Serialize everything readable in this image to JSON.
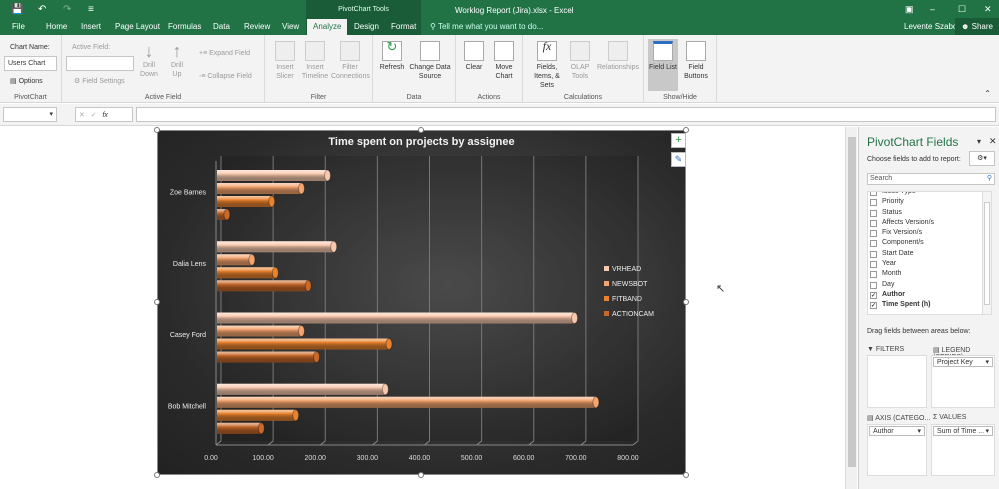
{
  "window": {
    "title": "Worklog Report (Jira).xlsx - Excel",
    "context_tab_group": "PivotChart Tools",
    "user": "Levente Szabo",
    "share": "Share"
  },
  "tabs": [
    "File",
    "Home",
    "Insert",
    "Page Layout",
    "Formulas",
    "Data",
    "Review",
    "View",
    "Analyze",
    "Design",
    "Format"
  ],
  "active_tab": "Analyze",
  "tell_me": "Tell me what you want to do...",
  "ribbon": {
    "pivotchart": {
      "chart_name_label": "Chart Name:",
      "chart_name_value": "Users Chart",
      "options": "Options",
      "group": "PivotChart"
    },
    "active_field": {
      "label": "Active Field:",
      "value": "",
      "field_settings": "Field Settings",
      "drill_down": "Drill Down",
      "drill_up": "Drill Up",
      "expand": "Expand Field",
      "collapse": "Collapse Field",
      "group": "Active Field"
    },
    "filter": {
      "insert_slicer": "Insert Slicer",
      "insert_timeline": "Insert Timeline",
      "filter_connections": "Filter Connections",
      "group": "Filter"
    },
    "data": {
      "refresh": "Refresh",
      "change_source": "Change Data Source",
      "group": "Data"
    },
    "actions": {
      "clear": "Clear",
      "move_chart": "Move Chart",
      "group": "Actions"
    },
    "calculations": {
      "fields_items": "Fields, Items, & Sets",
      "olap": "OLAP Tools",
      "relationships": "Relationships",
      "group": "Calculations"
    },
    "show_hide": {
      "field_list": "Field List",
      "field_buttons": "Field Buttons",
      "group": "Show/Hide"
    }
  },
  "formula_bar": {
    "name_box": "",
    "formula": "",
    "fx": "fx"
  },
  "chart_data": {
    "type": "bar",
    "title": "Time spent on projects by assignee",
    "categories": [
      "Zoe Barnes",
      "Dalia Lens",
      "Casey Ford",
      "Bob Mitchell"
    ],
    "series": [
      {
        "name": "VRHEAD",
        "color": "#f9c9ae",
        "values": [
          212,
          224,
          686,
          323
        ]
      },
      {
        "name": "NEWSBOT",
        "color": "#f4a46e",
        "values": [
          162,
          67,
          162,
          727
        ]
      },
      {
        "name": "FITBAND",
        "color": "#e9822e",
        "values": [
          105,
          112,
          330,
          151
        ]
      },
      {
        "name": "ACTIONCAM",
        "color": "#c8692a",
        "values": [
          19,
          175,
          191,
          85
        ]
      }
    ],
    "xlim": [
      0,
      800
    ],
    "ticks": [
      "0.00",
      "100.00",
      "200.00",
      "300.00",
      "400.00",
      "500.00",
      "600.00",
      "700.00",
      "800.00"
    ],
    "grid": true,
    "legend": "right",
    "style": "3d-cylinder"
  },
  "panel": {
    "title": "PivotChart Fields",
    "choose": "Choose fields to add to report:",
    "search_placeholder": "Search",
    "fields": [
      {
        "n": "Issue Type",
        "c": false
      },
      {
        "n": "Priority",
        "c": false
      },
      {
        "n": "Status",
        "c": false
      },
      {
        "n": "Affects Version/s",
        "c": false
      },
      {
        "n": "Fix Version/s",
        "c": false
      },
      {
        "n": "Component/s",
        "c": false
      },
      {
        "n": "Start Date",
        "c": false
      },
      {
        "n": "Year",
        "c": false
      },
      {
        "n": "Month",
        "c": false
      },
      {
        "n": "Day",
        "c": false
      },
      {
        "n": "Author",
        "c": true
      },
      {
        "n": "Time Spent (h)",
        "c": true
      }
    ],
    "drag": "Drag fields between areas below:",
    "filters": "FILTERS",
    "legend": "LEGEND (SERIES)",
    "legend_item": "Project Key",
    "axis": "AXIS (CATEGO...",
    "axis_item": "Author",
    "values": "VALUES",
    "values_item": "Sum of Time ..."
  }
}
